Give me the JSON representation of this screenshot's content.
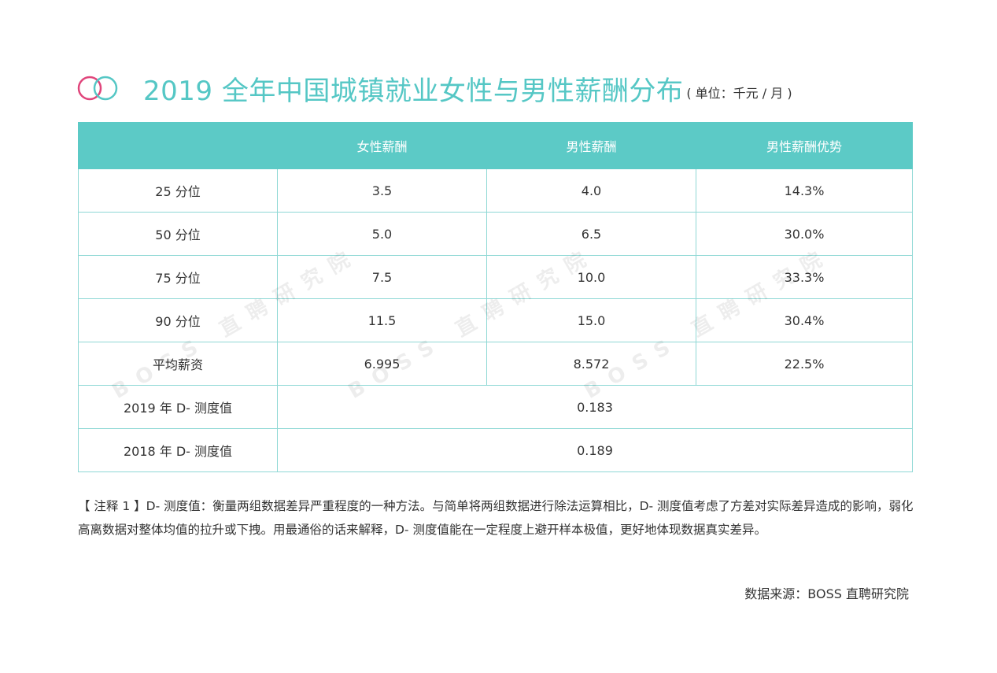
{
  "title": {
    "text": "2019 全年中国城镇就业女性与男性薪酬分布",
    "unit": "( 单位：千元 / 月 )"
  },
  "colors": {
    "accent": "#5ccac6",
    "logo_pink": "#e0457b",
    "logo_teal": "#55c7c5"
  },
  "table": {
    "headers": [
      "",
      "女性薪酬",
      "男性薪酬",
      "男性薪酬优势"
    ],
    "rows": [
      {
        "label": "25 分位",
        "female": "3.5",
        "male": "4.0",
        "advantage": "14.3%"
      },
      {
        "label": "50 分位",
        "female": "5.0",
        "male": "6.5",
        "advantage": "30.0%"
      },
      {
        "label": "75 分位",
        "female": "7.5",
        "male": "10.0",
        "advantage": "33.3%"
      },
      {
        "label": "90 分位",
        "female": "11.5",
        "male": "15.0",
        "advantage": "30.4%"
      },
      {
        "label": "平均薪资",
        "female": "6.995",
        "male": "8.572",
        "advantage": "22.5%"
      }
    ],
    "d_rows": [
      {
        "label": "2019 年 D- 测度值",
        "value": "0.183"
      },
      {
        "label": "2018 年 D- 测度值",
        "value": "0.189"
      }
    ]
  },
  "watermark": "BOSS 直聘研究院",
  "note": "【 注释 1 】D- 测度值：衡量两组数据差异严重程度的一种方法。与简单将两组数据进行除法运算相比，D- 测度值考虑了方差对实际差异造成的影响，弱化高离数据对整体均值的拉升或下拽。用最通俗的话来解释，D- 测度值能在一定程度上避开样本极值，更好地体现数据真实差异。",
  "source": "数据来源：BOSS 直聘研究院"
}
